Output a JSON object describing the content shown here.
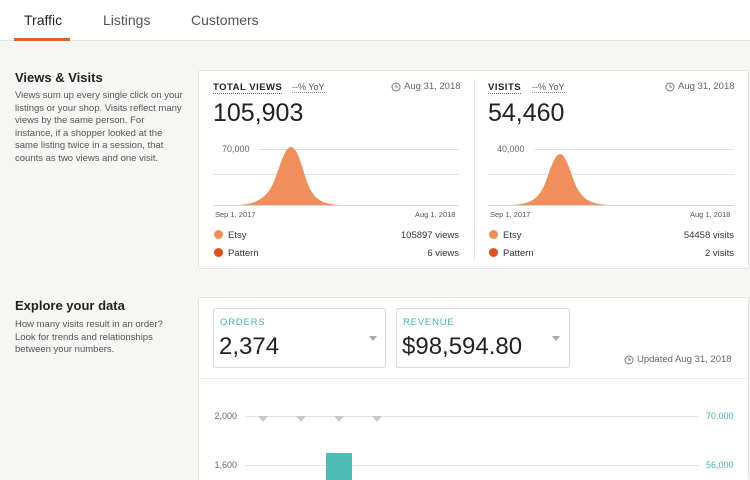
{
  "tabs": [
    {
      "label": "Traffic",
      "active": true
    },
    {
      "label": "Listings",
      "active": false
    },
    {
      "label": "Customers",
      "active": false
    }
  ],
  "views_section": {
    "title": "Views & Visits",
    "description": "Views sum up every single click on your listings or your shop. Visits reflect many views by the same person. For instance, if a shopper looked at the same listing twice in a session, that counts as two views and one visit."
  },
  "views_card": {
    "label": "TOTAL VIEWS",
    "yoy": "--% YoY",
    "date": "Aug 31, 2018",
    "value": "105,903",
    "y_tick": "70,000",
    "x_start": "Sep 1, 2017",
    "x_end": "Aug 1, 2018",
    "legend": [
      {
        "name": "Etsy",
        "value": "105897 views",
        "color": "#ef8f5c"
      },
      {
        "name": "Pattern",
        "value": "6 views",
        "color": "#d9531e"
      }
    ]
  },
  "visits_card": {
    "label": "VISITS",
    "yoy": "--% YoY",
    "date": "Aug 31, 2018",
    "value": "54,460",
    "y_tick": "40,000",
    "x_start": "Sep 1, 2017",
    "x_end": "Aug 1, 2018",
    "legend": [
      {
        "name": "Etsy",
        "value": "54458 visits",
        "color": "#ef8f5c"
      },
      {
        "name": "Pattern",
        "value": "2 visits",
        "color": "#d9531e"
      }
    ]
  },
  "explore_section": {
    "title": "Explore your data",
    "description": "How many visits result in an order? Look for trends and relationships between your numbers."
  },
  "explore_card": {
    "orders": {
      "label": "ORDERS",
      "value": "2,374"
    },
    "revenue": {
      "label": "REVENUE",
      "value": "$98,594.80"
    },
    "updated": "Updated Aug 31, 2018",
    "left_ticks": [
      "2,000",
      "1,600"
    ],
    "right_ticks": [
      "70,000",
      "56,000"
    ]
  },
  "colors": {
    "accent": "#e1621f",
    "teal": "#4ab3ad",
    "chart_fill": "#ef8f5c"
  },
  "icons": {
    "clock": "clock-icon",
    "caret": "chevron-down-icon"
  }
}
